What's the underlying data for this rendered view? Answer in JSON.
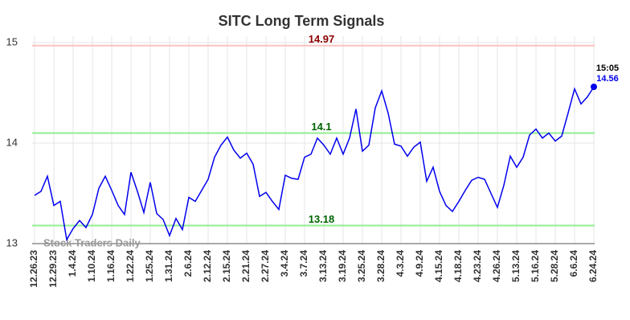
{
  "chart_data": {
    "type": "line",
    "title": "SITC Long Term Signals",
    "watermark": "Stock Traders Daily",
    "categories": [
      "12.26.23",
      null,
      null,
      "12.29.23",
      null,
      null,
      "1.4.24",
      null,
      null,
      "1.10.24",
      null,
      null,
      "1.16.24",
      null,
      null,
      "1.22.24",
      null,
      null,
      "1.25.24",
      null,
      null,
      "1.31.24",
      null,
      null,
      "2.6.24",
      null,
      null,
      "2.12.24",
      null,
      null,
      "2.15.24",
      null,
      null,
      "2.21.24",
      null,
      null,
      "2.27.24",
      null,
      null,
      "3.4.24",
      null,
      null,
      "3.7.24",
      null,
      null,
      "3.13.24",
      null,
      null,
      "3.19.24",
      null,
      null,
      "3.25.24",
      null,
      null,
      "3.28.24",
      null,
      null,
      "4.3.24",
      null,
      null,
      "4.9.24",
      null,
      null,
      "4.15.24",
      null,
      null,
      "4.18.24",
      null,
      null,
      "4.23.24",
      null,
      null,
      "4.26.24",
      null,
      null,
      "5.13.24",
      null,
      null,
      "5.16.24",
      null,
      null,
      "5.28.24",
      null,
      null,
      "6.6.24",
      null,
      null,
      "6.24.24"
    ],
    "values": [
      13.48,
      13.52,
      13.67,
      13.38,
      13.42,
      13.04,
      13.15,
      13.23,
      13.16,
      13.29,
      13.55,
      13.67,
      13.53,
      13.38,
      13.29,
      13.71,
      13.52,
      13.31,
      13.61,
      13.3,
      13.24,
      13.08,
      13.25,
      13.14,
      13.46,
      13.42,
      13.53,
      13.64,
      13.86,
      13.98,
      14.06,
      13.93,
      13.85,
      13.9,
      13.79,
      13.47,
      13.51,
      13.42,
      13.34,
      13.68,
      13.65,
      13.64,
      13.86,
      13.89,
      14.05,
      13.98,
      13.89,
      14.05,
      13.89,
      14.05,
      14.34,
      13.92,
      13.98,
      14.35,
      14.52,
      14.3,
      13.99,
      13.97,
      13.87,
      13.96,
      14.01,
      13.62,
      13.76,
      13.52,
      13.38,
      13.32,
      13.42,
      13.53,
      13.63,
      13.66,
      13.64,
      13.5,
      13.36,
      13.58,
      13.87,
      13.76,
      13.86,
      14.08,
      14.14,
      14.05,
      14.1,
      14.02,
      14.07,
      14.3,
      14.54,
      14.39,
      14.46,
      14.56
    ],
    "color": "#0000ee",
    "last_time": "15:05",
    "hlines": [
      {
        "value": 14.97,
        "color": "#8b0000",
        "line_color": "#ffc0c0"
      },
      {
        "value": 14.1,
        "color": "#006400",
        "line_color": "#90ee90"
      },
      {
        "value": 13.18,
        "color": "#006400",
        "line_color": "#90ee90"
      }
    ],
    "ylim": [
      13,
      15
    ],
    "yticks": [
      13,
      14,
      15
    ],
    "grid": true
  }
}
